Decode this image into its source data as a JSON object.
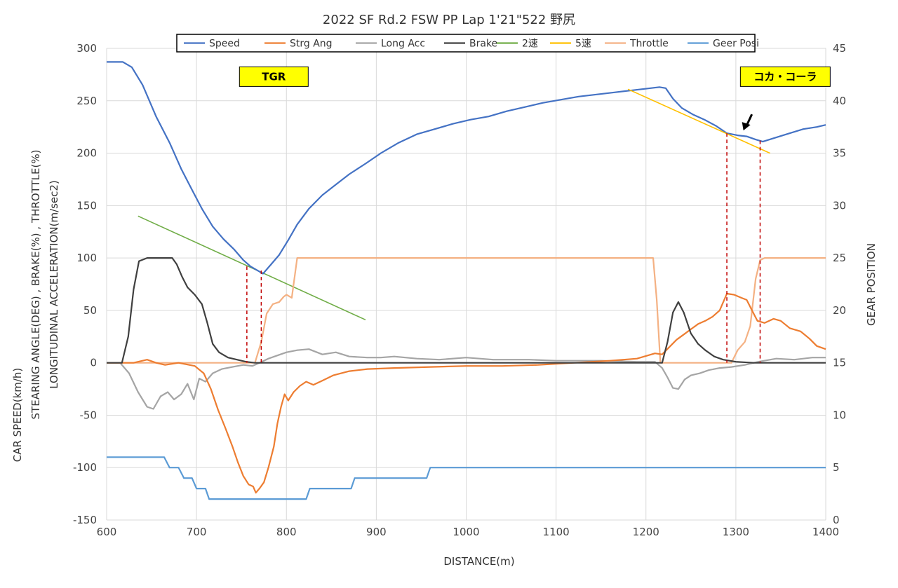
{
  "chart_data": {
    "type": "line",
    "title": "2022 SF Rd.2 FSW PP Lap 1'21\"522 野尻",
    "xlabel": "DISTANCE(m)",
    "ylabel_left": [
      "CAR SPEED(km/h)",
      "STEARING ANGLE(DEG) , BRAKE(%) , THROTTLE(%)",
      "LONGITUDINAL ACCELERATION(m/sec2)"
    ],
    "ylabel_right": "GEAR POSITION",
    "xlim": [
      600,
      1400
    ],
    "ylim_left": [
      -150,
      300
    ],
    "ylim_right": [
      0,
      45
    ],
    "x_ticks": [
      600,
      700,
      800,
      900,
      1000,
      1100,
      1200,
      1300,
      1400
    ],
    "y_ticks_left": [
      -150,
      -100,
      -50,
      0,
      50,
      100,
      150,
      200,
      250,
      300
    ],
    "y_ticks_right": [
      0,
      5,
      10,
      15,
      20,
      25,
      30,
      35,
      40,
      45
    ],
    "grid": true,
    "legend_position": "top-center",
    "annotations": [
      {
        "text": "TGR",
        "x": 786,
        "y": 273
      },
      {
        "text": "コカ・コーラ",
        "x": 1355,
        "y": 273
      }
    ],
    "markers": [
      {
        "type": "dashed-vline",
        "x": 756,
        "y_top": 92
      },
      {
        "type": "dashed-vline",
        "x": 772,
        "y_top": 88
      },
      {
        "type": "dashed-vline",
        "x": 1290,
        "y_top": 219
      },
      {
        "type": "dashed-vline",
        "x": 1327,
        "y_top": 212
      },
      {
        "type": "arrow",
        "x": 1310,
        "y": 221
      }
    ],
    "series": [
      {
        "name": "Speed",
        "color": "#4472c4",
        "axis": "left",
        "points": [
          [
            600,
            287
          ],
          [
            618,
            287
          ],
          [
            628,
            282
          ],
          [
            640,
            265
          ],
          [
            655,
            235
          ],
          [
            670,
            210
          ],
          [
            683,
            185
          ],
          [
            695,
            165
          ],
          [
            706,
            147
          ],
          [
            718,
            130
          ],
          [
            730,
            118
          ],
          [
            742,
            108
          ],
          [
            752,
            98
          ],
          [
            760,
            92
          ],
          [
            768,
            88
          ],
          [
            774,
            85
          ],
          [
            782,
            93
          ],
          [
            792,
            103
          ],
          [
            802,
            117
          ],
          [
            812,
            132
          ],
          [
            825,
            147
          ],
          [
            840,
            160
          ],
          [
            855,
            170
          ],
          [
            870,
            180
          ],
          [
            888,
            190
          ],
          [
            905,
            200
          ],
          [
            925,
            210
          ],
          [
            945,
            218
          ],
          [
            965,
            223
          ],
          [
            985,
            228
          ],
          [
            1005,
            232
          ],
          [
            1025,
            235
          ],
          [
            1045,
            240
          ],
          [
            1065,
            244
          ],
          [
            1085,
            248
          ],
          [
            1105,
            251
          ],
          [
            1125,
            254
          ],
          [
            1145,
            256
          ],
          [
            1165,
            258
          ],
          [
            1185,
            260
          ],
          [
            1205,
            262
          ],
          [
            1215,
            263
          ],
          [
            1222,
            262
          ],
          [
            1230,
            252
          ],
          [
            1240,
            243
          ],
          [
            1252,
            237
          ],
          [
            1265,
            232
          ],
          [
            1278,
            226
          ],
          [
            1290,
            219
          ],
          [
            1302,
            217
          ],
          [
            1312,
            216
          ],
          [
            1322,
            213
          ],
          [
            1330,
            211
          ],
          [
            1345,
            215
          ],
          [
            1360,
            219
          ],
          [
            1375,
            223
          ],
          [
            1390,
            225
          ],
          [
            1400,
            227
          ]
        ]
      },
      {
        "name": "Strg Ang",
        "color": "#ed7d31",
        "axis": "left",
        "points": [
          [
            600,
            0
          ],
          [
            630,
            0
          ],
          [
            645,
            3
          ],
          [
            655,
            0
          ],
          [
            665,
            -2
          ],
          [
            680,
            0
          ],
          [
            698,
            -3
          ],
          [
            708,
            -10
          ],
          [
            716,
            -25
          ],
          [
            724,
            -45
          ],
          [
            732,
            -62
          ],
          [
            740,
            -80
          ],
          [
            746,
            -95
          ],
          [
            752,
            -108
          ],
          [
            758,
            -116
          ],
          [
            763,
            -118
          ],
          [
            766,
            -124
          ],
          [
            770,
            -120
          ],
          [
            775,
            -114
          ],
          [
            780,
            -100
          ],
          [
            786,
            -80
          ],
          [
            790,
            -58
          ],
          [
            794,
            -42
          ],
          [
            798,
            -30
          ],
          [
            802,
            -36
          ],
          [
            808,
            -28
          ],
          [
            815,
            -22
          ],
          [
            822,
            -18
          ],
          [
            830,
            -21
          ],
          [
            840,
            -17
          ],
          [
            852,
            -12
          ],
          [
            870,
            -8
          ],
          [
            890,
            -6
          ],
          [
            920,
            -5
          ],
          [
            960,
            -4
          ],
          [
            1000,
            -3
          ],
          [
            1040,
            -3
          ],
          [
            1080,
            -2
          ],
          [
            1120,
            0
          ],
          [
            1160,
            2
          ],
          [
            1190,
            4
          ],
          [
            1210,
            9
          ],
          [
            1218,
            8
          ],
          [
            1226,
            15
          ],
          [
            1234,
            22
          ],
          [
            1242,
            27
          ],
          [
            1250,
            32
          ],
          [
            1258,
            37
          ],
          [
            1266,
            40
          ],
          [
            1274,
            44
          ],
          [
            1282,
            50
          ],
          [
            1290,
            66
          ],
          [
            1298,
            65
          ],
          [
            1306,
            62
          ],
          [
            1312,
            60
          ],
          [
            1318,
            50
          ],
          [
            1324,
            40
          ],
          [
            1332,
            38
          ],
          [
            1342,
            42
          ],
          [
            1350,
            40
          ],
          [
            1360,
            33
          ],
          [
            1372,
            30
          ],
          [
            1382,
            23
          ],
          [
            1390,
            16
          ],
          [
            1400,
            13
          ]
        ]
      },
      {
        "name": "Long Acc",
        "color": "#a5a5a5",
        "axis": "left",
        "points": [
          [
            600,
            0
          ],
          [
            615,
            0
          ],
          [
            625,
            -10
          ],
          [
            635,
            -28
          ],
          [
            645,
            -42
          ],
          [
            652,
            -44
          ],
          [
            660,
            -32
          ],
          [
            668,
            -28
          ],
          [
            675,
            -35
          ],
          [
            683,
            -30
          ],
          [
            690,
            -20
          ],
          [
            697,
            -35
          ],
          [
            703,
            -15
          ],
          [
            710,
            -18
          ],
          [
            718,
            -10
          ],
          [
            728,
            -6
          ],
          [
            740,
            -4
          ],
          [
            752,
            -2
          ],
          [
            762,
            -3
          ],
          [
            770,
            0
          ],
          [
            780,
            4
          ],
          [
            790,
            7
          ],
          [
            800,
            10
          ],
          [
            812,
            12
          ],
          [
            825,
            13
          ],
          [
            840,
            8
          ],
          [
            855,
            10
          ],
          [
            870,
            6
          ],
          [
            890,
            5
          ],
          [
            905,
            5
          ],
          [
            920,
            6
          ],
          [
            945,
            4
          ],
          [
            970,
            3
          ],
          [
            1000,
            5
          ],
          [
            1030,
            3
          ],
          [
            1070,
            3
          ],
          [
            1100,
            2
          ],
          [
            1150,
            2
          ],
          [
            1190,
            1
          ],
          [
            1210,
            1
          ],
          [
            1218,
            -5
          ],
          [
            1224,
            -14
          ],
          [
            1230,
            -24
          ],
          [
            1236,
            -25
          ],
          [
            1243,
            -16
          ],
          [
            1250,
            -12
          ],
          [
            1260,
            -10
          ],
          [
            1270,
            -7
          ],
          [
            1282,
            -5
          ],
          [
            1295,
            -4
          ],
          [
            1310,
            -2
          ],
          [
            1325,
            1
          ],
          [
            1345,
            4
          ],
          [
            1365,
            3
          ],
          [
            1385,
            5
          ],
          [
            1400,
            5
          ]
        ]
      },
      {
        "name": "Brake",
        "color": "#404040",
        "axis": "left",
        "points": [
          [
            600,
            0
          ],
          [
            617,
            0
          ],
          [
            624,
            25
          ],
          [
            630,
            70
          ],
          [
            636,
            97
          ],
          [
            645,
            100
          ],
          [
            660,
            100
          ],
          [
            673,
            100
          ],
          [
            678,
            94
          ],
          [
            684,
            82
          ],
          [
            690,
            72
          ],
          [
            698,
            65
          ],
          [
            706,
            56
          ],
          [
            712,
            38
          ],
          [
            718,
            18
          ],
          [
            725,
            10
          ],
          [
            735,
            5
          ],
          [
            745,
            3
          ],
          [
            755,
            1
          ],
          [
            765,
            0
          ],
          [
            780,
            0
          ],
          [
            900,
            0
          ],
          [
            1000,
            0
          ],
          [
            1100,
            0
          ],
          [
            1200,
            0
          ],
          [
            1218,
            0
          ],
          [
            1224,
            20
          ],
          [
            1230,
            48
          ],
          [
            1236,
            58
          ],
          [
            1242,
            48
          ],
          [
            1250,
            28
          ],
          [
            1258,
            18
          ],
          [
            1266,
            12
          ],
          [
            1276,
            6
          ],
          [
            1286,
            3
          ],
          [
            1300,
            1
          ],
          [
            1320,
            0
          ],
          [
            1400,
            0
          ]
        ]
      },
      {
        "name": "2速",
        "color": "#70ad47",
        "axis": "left",
        "points": [
          [
            635,
            140
          ],
          [
            888,
            41
          ]
        ]
      },
      {
        "name": "5速",
        "color": "#ffc000",
        "axis": "left",
        "points": [
          [
            1180,
            261
          ],
          [
            1338,
            200
          ]
        ]
      },
      {
        "name": "Throttle",
        "color": "#f4b183",
        "axis": "left",
        "points": [
          [
            600,
            0
          ],
          [
            752,
            0
          ],
          [
            765,
            0
          ],
          [
            772,
            20
          ],
          [
            778,
            47
          ],
          [
            785,
            56
          ],
          [
            792,
            58
          ],
          [
            797,
            63
          ],
          [
            800,
            65
          ],
          [
            806,
            62
          ],
          [
            812,
            100
          ],
          [
            1208,
            100
          ],
          [
            1212,
            60
          ],
          [
            1216,
            0
          ],
          [
            1295,
            0
          ],
          [
            1302,
            12
          ],
          [
            1310,
            20
          ],
          [
            1316,
            35
          ],
          [
            1322,
            80
          ],
          [
            1327,
            98
          ],
          [
            1332,
            100
          ],
          [
            1400,
            100
          ]
        ]
      },
      {
        "name": "Geer Posi",
        "color": "#5b9bd5",
        "axis": "right",
        "points": [
          [
            600,
            6
          ],
          [
            664,
            6
          ],
          [
            670,
            5
          ],
          [
            680,
            5
          ],
          [
            686,
            4
          ],
          [
            695,
            4
          ],
          [
            700,
            3
          ],
          [
            710,
            3
          ],
          [
            714,
            2
          ],
          [
            822,
            2
          ],
          [
            826,
            3
          ],
          [
            872,
            3
          ],
          [
            876,
            4
          ],
          [
            956,
            4
          ],
          [
            960,
            5
          ],
          [
            1400,
            5
          ]
        ]
      }
    ]
  }
}
